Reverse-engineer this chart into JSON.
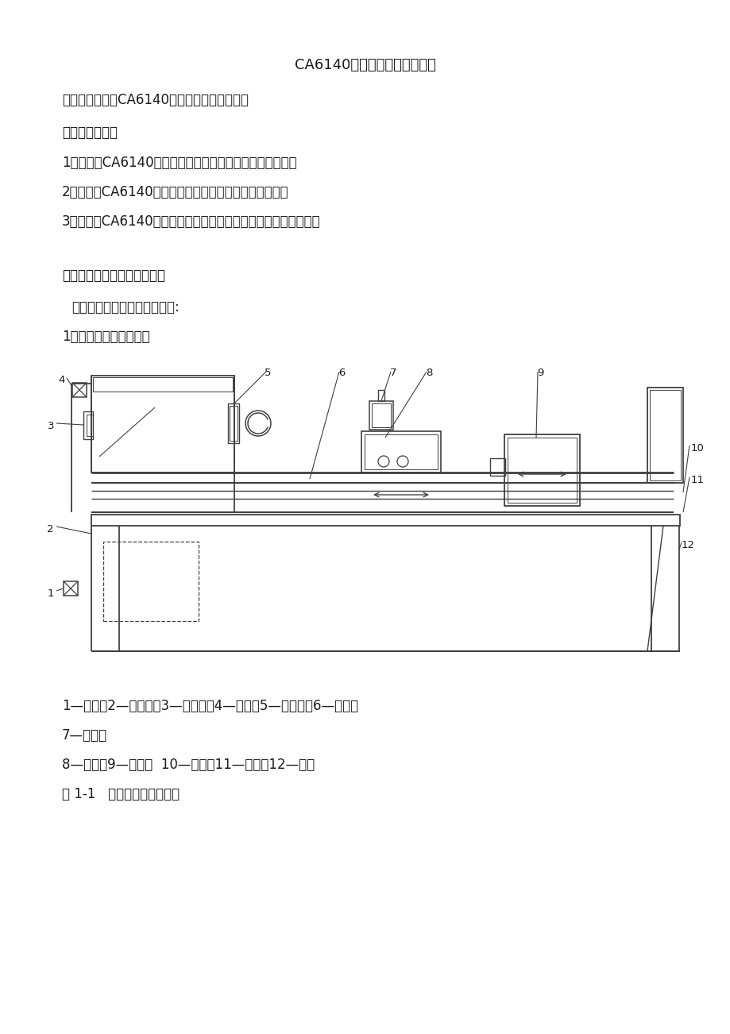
{
  "title": "CA6140普通车床电气图的认识",
  "line1": "一、项目名称：CA6140普通车床电气图的认识",
  "line2": "二、项目要求：",
  "line3": "1．会识别CA6140普通车床电气图中各电器元件符号名称；",
  "line4": "2．会识别CA6140普通车床电气图图形符号和文字符号；",
  "line5": "3．会分析CA6140普通车床电气图的布局图及原理图的功能分布。",
  "line6": "三、工作项目的知识点预读：",
  "line7": "（一）车床的结构与工作原理:",
  "line8": "1．普通车床结构示意图",
  "caption1": "1—带轮；2—进给箱；3—挂轮架；4—带轮；5—主轴管；6—床身；",
  "caption2": "7—刀架；",
  "caption3": "8—溜板；9—尾座；  10—丝杠；11—光杠；12—床腿",
  "caption4": "图 1-1   普通车床结构示意图",
  "bg_color": "#ffffff",
  "text_color": "#1a1a1a",
  "line_color": "#404040"
}
